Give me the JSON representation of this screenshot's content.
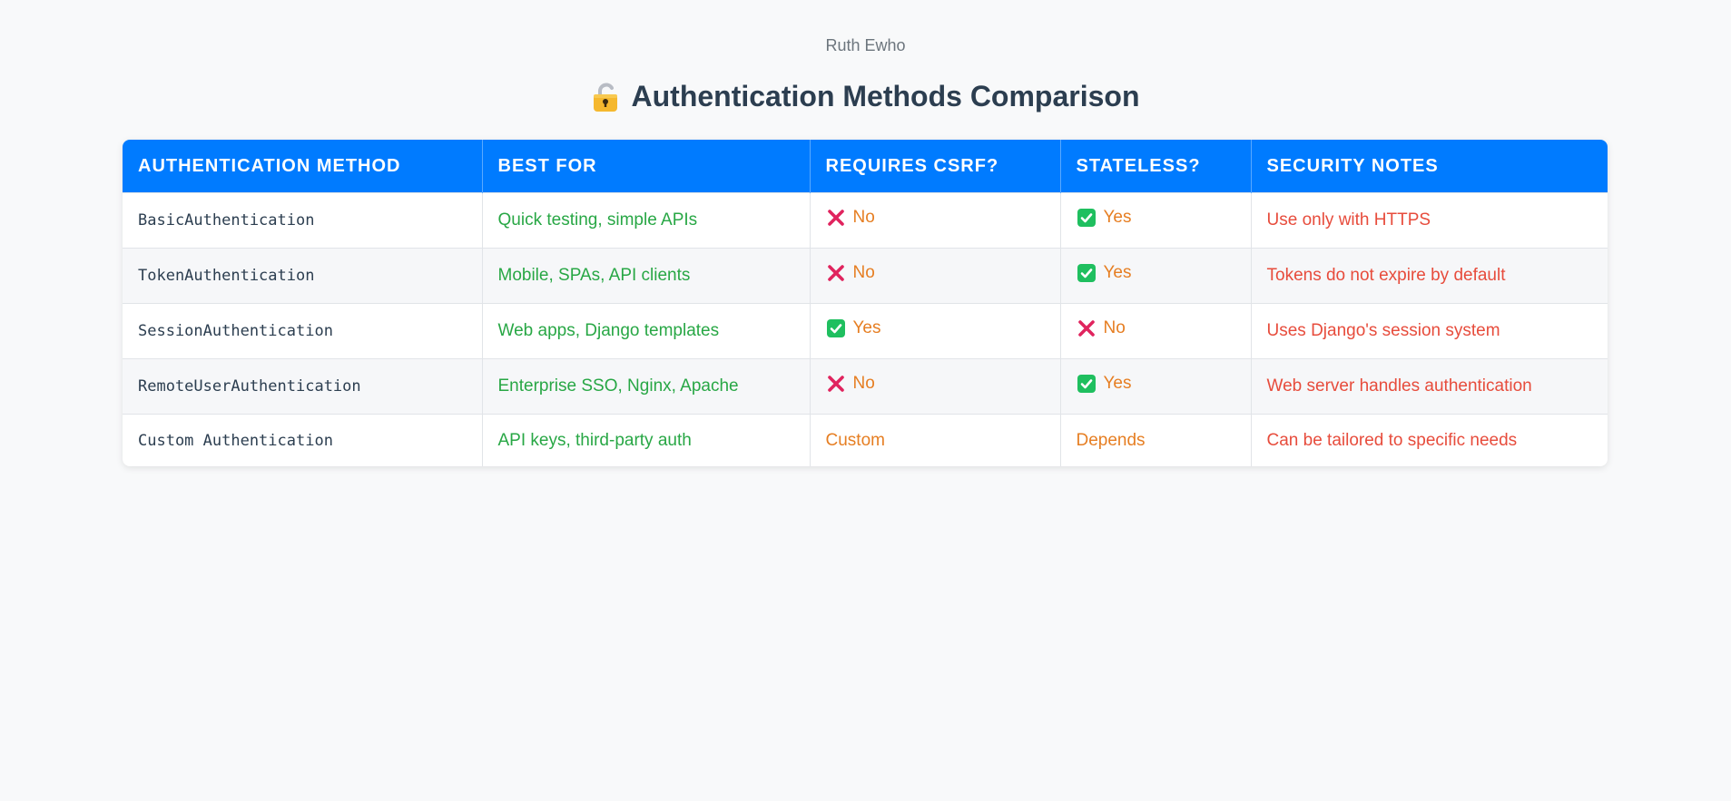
{
  "author": "Ruth Ewho",
  "title": "Authentication Methods Comparison",
  "title_icon": "lock-icon",
  "colors": {
    "header_bg": "#007bff",
    "best_for": "#28a745",
    "status": "#e67e22",
    "notes": "#e74c3c",
    "check": "#1fbf5f",
    "cross": "#e0245e"
  },
  "table": {
    "headers": [
      "Authentication Method",
      "Best For",
      "Requires CSRF?",
      "Stateless?",
      "Security Notes"
    ],
    "rows": [
      {
        "method": "BasicAuthentication",
        "best_for": "Quick testing, simple APIs",
        "csrf": {
          "icon": "cross-icon",
          "label": "No"
        },
        "stateless": {
          "icon": "check-icon",
          "label": "Yes"
        },
        "notes": "Use only with HTTPS"
      },
      {
        "method": "TokenAuthentication",
        "best_for": "Mobile, SPAs, API clients",
        "csrf": {
          "icon": "cross-icon",
          "label": "No"
        },
        "stateless": {
          "icon": "check-icon",
          "label": "Yes"
        },
        "notes": "Tokens do not expire by default"
      },
      {
        "method": "SessionAuthentication",
        "best_for": "Web apps, Django templates",
        "csrf": {
          "icon": "check-icon",
          "label": "Yes"
        },
        "stateless": {
          "icon": "cross-icon",
          "label": "No"
        },
        "notes": "Uses Django's session system"
      },
      {
        "method": "RemoteUserAuthentication",
        "best_for": "Enterprise SSO, Nginx, Apache",
        "csrf": {
          "icon": "cross-icon",
          "label": "No"
        },
        "stateless": {
          "icon": "check-icon",
          "label": "Yes"
        },
        "notes": "Web server handles authentication"
      },
      {
        "method": "Custom Authentication",
        "best_for": "API keys, third-party auth",
        "csrf": {
          "icon": "",
          "label": "Custom"
        },
        "stateless": {
          "icon": "",
          "label": "Depends"
        },
        "notes": "Can be tailored to specific needs"
      }
    ]
  }
}
